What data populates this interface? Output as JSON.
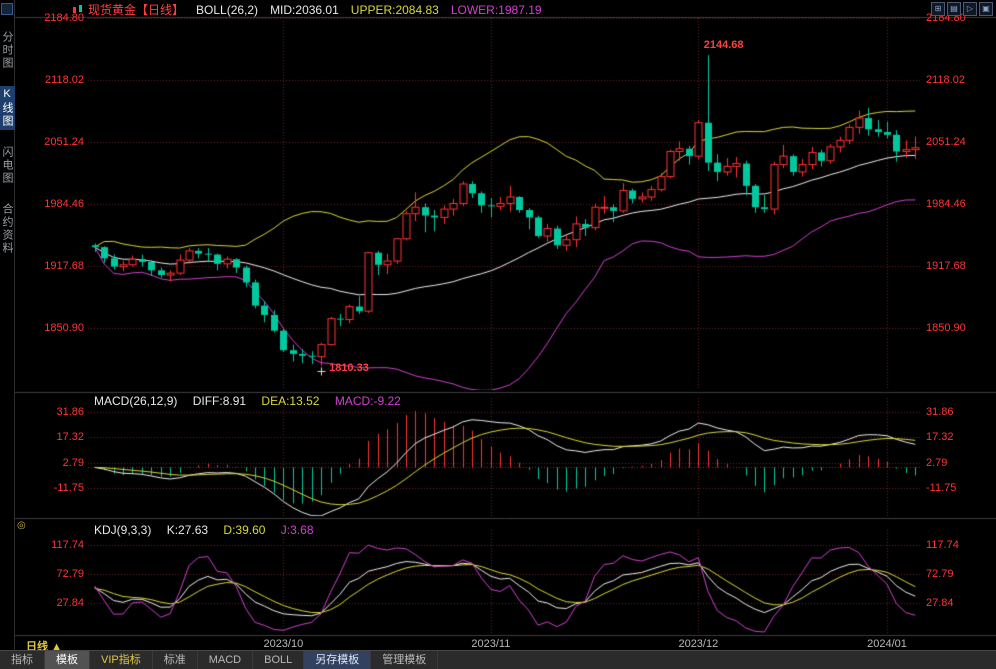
{
  "header": {
    "symbol": "现货黄金【日线】",
    "indicator": "BOLL(26,2)",
    "mid": "MID:2036.01",
    "upper": "UPPER:2084.83",
    "lower": "LOWER:1987.19"
  },
  "toolbar": {
    "icons": [
      {
        "name": "tile-windows-icon",
        "glyph": "⊞"
      },
      {
        "name": "split-window-icon",
        "glyph": "▤"
      },
      {
        "name": "next-chart-icon",
        "glyph": "▷"
      },
      {
        "name": "fullscreen-icon",
        "glyph": "▣"
      }
    ]
  },
  "sidebar": {
    "items": [
      {
        "id": "fenshi",
        "label": "分时图",
        "active": false
      },
      {
        "id": "kline",
        "label": "K线图",
        "active": true
      },
      {
        "id": "flash",
        "label": "闪电图",
        "active": false
      },
      {
        "id": "contract",
        "label": "合约资料",
        "active": false
      }
    ]
  },
  "macd_header": {
    "title": "MACD(26,12,9)",
    "diff": "DIFF:8.91",
    "dea": "DEA:13.52",
    "macd": "MACD:-9.22"
  },
  "kdj_header": {
    "title": "KDJ(9,3,3)",
    "k": "K:27.63",
    "d": "D:39.60",
    "j": "J:3.68"
  },
  "xaxis": {
    "period": "日线",
    "arrow": "▲"
  },
  "tabs": [
    {
      "id": "indicator",
      "label": "指标",
      "style": "default"
    },
    {
      "id": "template",
      "label": "模板",
      "style": "active"
    },
    {
      "id": "vip-indicator",
      "label": "VIP指标",
      "style": "vip"
    },
    {
      "id": "standard",
      "label": "标准",
      "style": "default"
    },
    {
      "id": "macd",
      "label": "MACD",
      "style": "default"
    },
    {
      "id": "boll",
      "label": "BOLL",
      "style": "default"
    },
    {
      "id": "save-template",
      "label": "另存模板",
      "style": "primary"
    },
    {
      "id": "manage-template",
      "label": "管理模板",
      "style": "default"
    }
  ],
  "chart_data": {
    "type": "candlestick",
    "title": "现货黄金 日线",
    "panels": {
      "main": {
        "ylim": [
          1784.12,
          2184.8
        ],
        "ticks": [
          2184.8,
          2118.02,
          2051.24,
          1984.46,
          1917.68,
          1850.9
        ]
      },
      "macd": {
        "ylim": [
          -28,
          40
        ],
        "ticks": [
          31.86,
          17.32,
          2.79,
          -11.75
        ]
      },
      "kdj": {
        "ylim": [
          -20,
          141
        ],
        "ticks": [
          117.74,
          72.79,
          27.84
        ]
      }
    },
    "months": [
      {
        "i": 20,
        "label": "2023/10"
      },
      {
        "i": 42,
        "label": "2023/11"
      },
      {
        "i": 64,
        "label": "2023/12"
      },
      {
        "i": 84,
        "label": "2024/01"
      }
    ],
    "annotations": {
      "high": {
        "i": 65,
        "price": 2144.68,
        "label": "2144.68"
      },
      "low": {
        "i": 24,
        "price": 1810.33,
        "label": "1810.33"
      }
    },
    "indicators": {
      "boll": {
        "period": 26,
        "width": 2,
        "mid": 2036.01,
        "upper": 2084.83,
        "lower": 1987.19
      },
      "macd": {
        "short": 12,
        "long": 26,
        "signal": 9,
        "diff": 8.91,
        "dea": 13.52,
        "macd": -9.22
      },
      "kdj": {
        "n": 9,
        "m1": 3,
        "m2": 3,
        "k": 27.63,
        "d": 39.6,
        "j": 3.68
      }
    },
    "colors": {
      "up": "#ff3232",
      "down": "#00c9a0",
      "boll_upper": "#d8d838",
      "boll_mid": "#eeeeee",
      "boll_lower": "#d040d0",
      "grid": "#642222",
      "zero_line": "#8a2a2a",
      "axis_label": "#ff3434",
      "month_label": "#b8b8b8",
      "macd_diff": "#eeeeee",
      "macd_dea": "#d8d838",
      "kdj_k": "#eeeeee",
      "kdj_d": "#d8d838",
      "kdj_j": "#d040d0"
    },
    "candles": [
      [
        1940,
        1942,
        1933,
        1938
      ],
      [
        1938,
        1939,
        1921,
        1926
      ],
      [
        1926,
        1930,
        1914,
        1917
      ],
      [
        1917,
        1923,
        1912,
        1919
      ],
      [
        1919,
        1929,
        1917,
        1925
      ],
      [
        1925,
        1930,
        1917,
        1922
      ],
      [
        1922,
        1924,
        1907,
        1913
      ],
      [
        1913,
        1916,
        1905,
        1908
      ],
      [
        1908,
        1913,
        1901,
        1910
      ],
      [
        1910,
        1930,
        1908,
        1924
      ],
      [
        1924,
        1937,
        1920,
        1934
      ],
      [
        1934,
        1937,
        1926,
        1931
      ],
      [
        1931,
        1937,
        1923,
        1930
      ],
      [
        1930,
        1931,
        1913,
        1920
      ],
      [
        1920,
        1928,
        1915,
        1925
      ],
      [
        1925,
        1926,
        1910,
        1916
      ],
      [
        1916,
        1918,
        1895,
        1900
      ],
      [
        1900,
        1903,
        1872,
        1875
      ],
      [
        1875,
        1880,
        1857,
        1865
      ],
      [
        1865,
        1870,
        1846,
        1848
      ],
      [
        1848,
        1850,
        1825,
        1827
      ],
      [
        1827,
        1833,
        1815,
        1823
      ],
      [
        1823,
        1828,
        1813,
        1821
      ],
      [
        1821,
        1826,
        1812,
        1820
      ],
      [
        1820,
        1835,
        1810.33,
        1833
      ],
      [
        1833,
        1863,
        1832,
        1861
      ],
      [
        1861,
        1866,
        1853,
        1860
      ],
      [
        1860,
        1876,
        1856,
        1874
      ],
      [
        1874,
        1885,
        1866,
        1869
      ],
      [
        1869,
        1933,
        1867,
        1932
      ],
      [
        1932,
        1934,
        1908,
        1919
      ],
      [
        1919,
        1931,
        1909,
        1923
      ],
      [
        1923,
        1948,
        1920,
        1947
      ],
      [
        1947,
        1977,
        1945,
        1974
      ],
      [
        1974,
        1997,
        1966,
        1981
      ],
      [
        1981,
        1985,
        1954,
        1972
      ],
      [
        1972,
        1978,
        1955,
        1970
      ],
      [
        1970,
        1983,
        1963,
        1979
      ],
      [
        1979,
        1990,
        1972,
        1985
      ],
      [
        1985,
        2009,
        1982,
        2006
      ],
      [
        2006,
        2009,
        1991,
        1996
      ],
      [
        1996,
        1998,
        1975,
        1983
      ],
      [
        1983,
        1991,
        1970,
        1982
      ],
      [
        1982,
        1992,
        1978,
        1985
      ],
      [
        1985,
        2004,
        1976,
        1992
      ],
      [
        1992,
        1993,
        1975,
        1978
      ],
      [
        1978,
        1980,
        1957,
        1970
      ],
      [
        1970,
        1972,
        1948,
        1950
      ],
      [
        1950,
        1963,
        1944,
        1958
      ],
      [
        1958,
        1961,
        1936,
        1940
      ],
      [
        1940,
        1951,
        1934,
        1946
      ],
      [
        1946,
        1971,
        1938,
        1963
      ],
      [
        1963,
        1968,
        1950,
        1959
      ],
      [
        1959,
        1985,
        1956,
        1981
      ],
      [
        1981,
        1993,
        1974,
        1981
      ],
      [
        1981,
        1984,
        1965,
        1977
      ],
      [
        1977,
        2007,
        1975,
        1999
      ],
      [
        1999,
        2001,
        1985,
        1990
      ],
      [
        1990,
        1997,
        1986,
        1992
      ],
      [
        1992,
        2004,
        1988,
        2000
      ],
      [
        2000,
        2018,
        1998,
        2014
      ],
      [
        2014,
        2043,
        2012,
        2041
      ],
      [
        2041,
        2052,
        2031,
        2044
      ],
      [
        2044,
        2047,
        2027,
        2036
      ],
      [
        2036,
        2075,
        2033,
        2072
      ],
      [
        2072,
        2144.68,
        2020,
        2029
      ],
      [
        2029,
        2038,
        2009,
        2019
      ],
      [
        2019,
        2034,
        2015,
        2025
      ],
      [
        2025,
        2035,
        2013,
        2028
      ],
      [
        2028,
        2031,
        1994,
        2004
      ],
      [
        2004,
        2006,
        1975,
        1981
      ],
      [
        1981,
        1994,
        1975,
        1979
      ],
      [
        1979,
        2030,
        1973,
        2027
      ],
      [
        2027,
        2048,
        2023,
        2036
      ],
      [
        2036,
        2038,
        2015,
        2019
      ],
      [
        2019,
        2033,
        2014,
        2027
      ],
      [
        2027,
        2046,
        2022,
        2040
      ],
      [
        2040,
        2043,
        2025,
        2031
      ],
      [
        2031,
        2049,
        2028,
        2046
      ],
      [
        2046,
        2057,
        2040,
        2053
      ],
      [
        2053,
        2070,
        2049,
        2067
      ],
      [
        2067,
        2085,
        2060,
        2077
      ],
      [
        2077,
        2088,
        2058,
        2065
      ],
      [
        2065,
        2075,
        2057,
        2062
      ],
      [
        2062,
        2073,
        2055,
        2059
      ],
      [
        2059,
        2064,
        2030,
        2041
      ],
      [
        2041,
        2053,
        2034,
        2043
      ],
      [
        2043,
        2057,
        2033,
        2045
      ]
    ]
  }
}
